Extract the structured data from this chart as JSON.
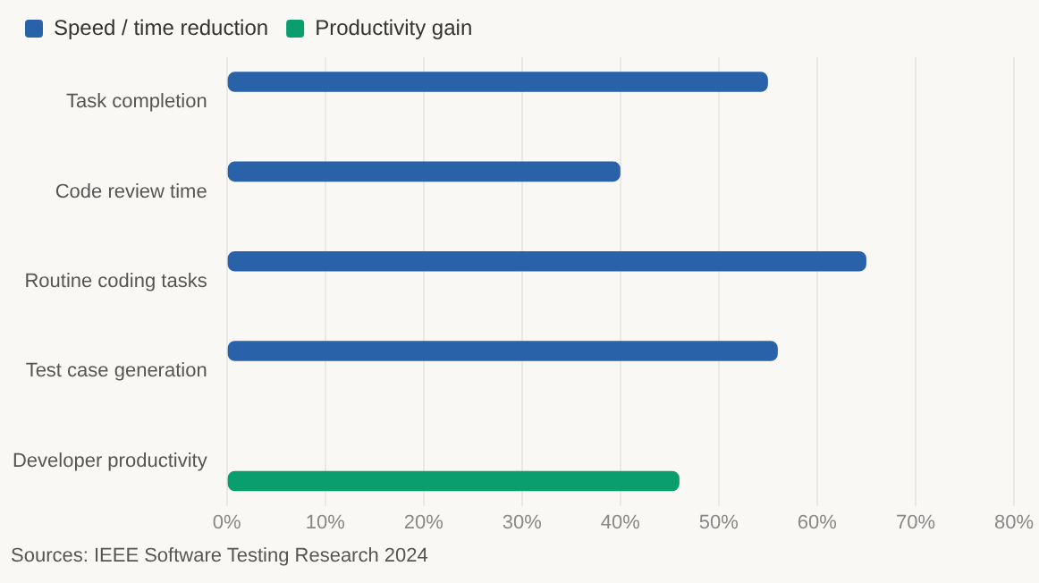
{
  "chart_data": {
    "type": "bar",
    "orientation": "horizontal",
    "categories": [
      "Task completion",
      "Code review time",
      "Routine coding tasks",
      "Test case generation",
      "Developer productivity"
    ],
    "series": [
      {
        "name": "Speed / time reduction",
        "color": "#2a62aa",
        "values": [
          55,
          40,
          65,
          56,
          null
        ]
      },
      {
        "name": "Productivity gain",
        "color": "#0a9d6e",
        "values": [
          null,
          null,
          null,
          null,
          46
        ]
      }
    ],
    "xlim": [
      0,
      80
    ],
    "xticks": [
      {
        "value": 0,
        "label": "0%"
      },
      {
        "value": 10,
        "label": "10%"
      },
      {
        "value": 20,
        "label": "20%"
      },
      {
        "value": 30,
        "label": "30%"
      },
      {
        "value": 40,
        "label": "40%"
      },
      {
        "value": 50,
        "label": "50%"
      },
      {
        "value": 60,
        "label": "60%"
      },
      {
        "value": 70,
        "label": "70%"
      },
      {
        "value": 80,
        "label": "80%"
      }
    ],
    "grid": "x",
    "legend": "top left",
    "annotations": [
      "Sources: IEEE Software Testing Research 2024"
    ]
  }
}
